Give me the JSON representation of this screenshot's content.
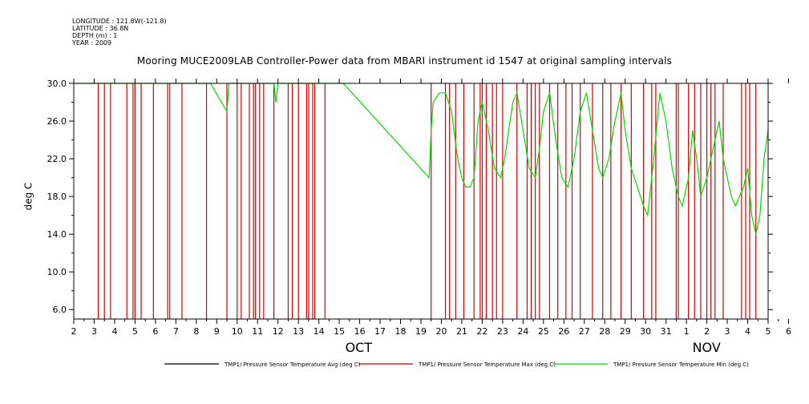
{
  "meta": {
    "longitude": "LONGITUDE : 121.8W(-121.8)",
    "latitude": "LATITUDE : 36.8N",
    "depth": "DEPTH (m) : 1",
    "year": "YEAR : 2009"
  },
  "chart_data": {
    "type": "line",
    "title": "Mooring MUCE2009LAB Controller-Power data from MBARI instrument id 1547 at original sampling intervals",
    "ylabel": "deg C",
    "ylim": [
      5,
      30
    ],
    "yticks": [
      "6.0",
      "10.0",
      "14.0",
      "18.0",
      "22.0",
      "26.0",
      "30.0"
    ],
    "x_range_days": [
      "2009-10-02",
      "2009-11-06"
    ],
    "x_day_labels": [
      "2",
      "3",
      "4",
      "5",
      "6",
      "7",
      "8",
      "9",
      "10",
      "11",
      "12",
      "13",
      "14",
      "15",
      "16",
      "17",
      "18",
      "19",
      "20",
      "21",
      "22",
      "23",
      "24",
      "25",
      "26",
      "27",
      "28",
      "29",
      "30",
      "31",
      "1",
      "2",
      "3",
      "4",
      "5",
      "6"
    ],
    "month_labels": [
      {
        "label": "OCT",
        "day": 16
      },
      {
        "label": "NOV",
        "day": 33
      }
    ],
    "series": [
      {
        "name": "TMP1/ Pressure Sensor Temperature Avg (deg C)",
        "color": "#000000"
      },
      {
        "name": "TMP1/ Pressure Sensor Temperature Max (deg C)",
        "color": "#d40000",
        "dropout_days": [
          3.2,
          3.5,
          3.8,
          4.6,
          4.9,
          5.0,
          5.3,
          5.9,
          6.6,
          6.7,
          7.3,
          8.5,
          9.5,
          10.0,
          10.2,
          10.6,
          10.8,
          10.9,
          11.1,
          11.3,
          11.8,
          12.5,
          12.7,
          13.0,
          13.4,
          13.5,
          13.7,
          13.8,
          14.3,
          19.5,
          20.2,
          20.4,
          20.7,
          21.1,
          21.6,
          21.9,
          22.0,
          22.2,
          22.5,
          22.7,
          23.0,
          23.7,
          24.2,
          24.4,
          24.6,
          24.8,
          25.3,
          25.7,
          26.1,
          26.4,
          26.8,
          27.4,
          27.9,
          28.3,
          28.8,
          29.3,
          29.9,
          30.3,
          30.5,
          31.5,
          31.6,
          32.1,
          32.4,
          32.7,
          33.0,
          33.2,
          33.4,
          33.8,
          34.7,
          34.9,
          35.1,
          35.4
        ]
      },
      {
        "name": "TMP1/ Pressure Sensor Temperature Min (deg C)",
        "color": "#00dd00",
        "points": [
          [
            2,
            30
          ],
          [
            8.7,
            30
          ],
          [
            9.5,
            27
          ],
          [
            9.6,
            30
          ],
          [
            11.8,
            30
          ],
          [
            11.9,
            28
          ],
          [
            12.0,
            30
          ],
          [
            15.2,
            30
          ],
          [
            19.4,
            20
          ],
          [
            19.5,
            25
          ],
          [
            19.6,
            28
          ],
          [
            19.9,
            29
          ],
          [
            20.2,
            29
          ],
          [
            20.5,
            27
          ],
          [
            20.8,
            22
          ],
          [
            21.0,
            20
          ],
          [
            21.2,
            19
          ],
          [
            21.4,
            19
          ],
          [
            21.6,
            20
          ],
          [
            21.8,
            26
          ],
          [
            22.0,
            28
          ],
          [
            22.3,
            25
          ],
          [
            22.6,
            21
          ],
          [
            22.9,
            20
          ],
          [
            23.1,
            22
          ],
          [
            23.3,
            25
          ],
          [
            23.5,
            28
          ],
          [
            23.7,
            29
          ],
          [
            24.0,
            25
          ],
          [
            24.3,
            21
          ],
          [
            24.6,
            20
          ],
          [
            24.8,
            23
          ],
          [
            25.0,
            27
          ],
          [
            25.3,
            29
          ],
          [
            25.6,
            24
          ],
          [
            25.9,
            20
          ],
          [
            26.2,
            19
          ],
          [
            26.5,
            22
          ],
          [
            26.8,
            27
          ],
          [
            27.1,
            29
          ],
          [
            27.4,
            25
          ],
          [
            27.7,
            21
          ],
          [
            27.9,
            20
          ],
          [
            28.2,
            22
          ],
          [
            28.5,
            26
          ],
          [
            28.8,
            29
          ],
          [
            29.0,
            25
          ],
          [
            29.3,
            21
          ],
          [
            29.6,
            19
          ],
          [
            29.9,
            17
          ],
          [
            30.1,
            16
          ],
          [
            30.4,
            22
          ],
          [
            30.7,
            29
          ],
          [
            31.0,
            26
          ],
          [
            31.3,
            21
          ],
          [
            31.6,
            18
          ],
          [
            31.8,
            17
          ],
          [
            32.1,
            20
          ],
          [
            32.3,
            25
          ],
          [
            32.5,
            22
          ],
          [
            32.7,
            18
          ],
          [
            33.0,
            20
          ],
          [
            33.3,
            23
          ],
          [
            33.6,
            26
          ],
          [
            33.8,
            22
          ],
          [
            34.0,
            20
          ],
          [
            34.2,
            18
          ],
          [
            34.4,
            17
          ],
          [
            34.6,
            18
          ],
          [
            34.8,
            19
          ],
          [
            35.0,
            21
          ],
          [
            35.2,
            16
          ],
          [
            35.4,
            14
          ],
          [
            35.6,
            16
          ],
          [
            35.8,
            22
          ],
          [
            36.0,
            25
          ]
        ]
      }
    ],
    "grid": false,
    "legend_placement": "bottom"
  }
}
